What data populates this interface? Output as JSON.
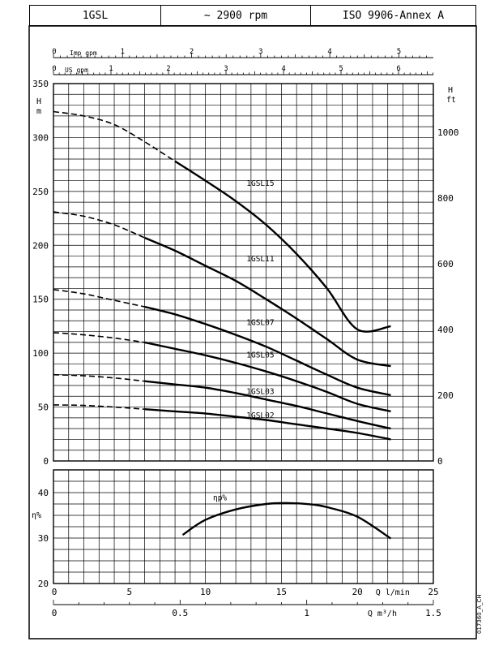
{
  "header": {
    "pump": "1GSL",
    "speed": "~ 2900 rpm",
    "standard": "ISO 9906-Annex A"
  },
  "figure_code": "017360_A_CH",
  "chart_data": [
    {
      "type": "line",
      "title": "",
      "ylabel": "H\nm",
      "ylabel_right": "H\nft",
      "ylim": [
        0,
        350
      ],
      "yticks": [
        0,
        50,
        100,
        150,
        200,
        250,
        300,
        350
      ],
      "yticks_right": [
        0,
        200,
        400,
        600,
        800,
        1000
      ],
      "yticks_right_ft_to_m": 0.3048,
      "top_axes": [
        {
          "label": "Imp gpm",
          "ticks": [
            0,
            1,
            2,
            3,
            4,
            5
          ],
          "lpm_per_unit": 4.546
        },
        {
          "label": "US gpm",
          "ticks": [
            0,
            1,
            2,
            3,
            4,
            5,
            6
          ],
          "lpm_per_unit": 3.785
        }
      ],
      "x_unit": "l/min",
      "xlim": [
        0,
        25
      ],
      "grid": true,
      "series": [
        {
          "name": "1GSL15",
          "label_at": {
            "x": 12.7,
            "y": 258
          },
          "dashed": [
            [
              0,
              324
            ],
            [
              2,
              320
            ],
            [
              4,
              312
            ],
            [
              6,
              296
            ],
            [
              8,
              278
            ]
          ],
          "solid": [
            [
              8,
              278
            ],
            [
              10,
              260
            ],
            [
              12,
              241
            ],
            [
              14,
              219
            ],
            [
              16,
              192
            ],
            [
              18,
              160
            ],
            [
              20,
              122
            ],
            [
              22.2,
              125
            ]
          ]
        },
        {
          "name": "1GSL11",
          "label_at": {
            "x": 12.7,
            "y": 188
          },
          "dashed": [
            [
              0,
              231
            ],
            [
              2,
              227
            ],
            [
              4,
              219
            ],
            [
              6,
              207
            ]
          ],
          "solid": [
            [
              6,
              207
            ],
            [
              8,
              195
            ],
            [
              10,
              181
            ],
            [
              12,
              167
            ],
            [
              14,
              150
            ],
            [
              16,
              132
            ],
            [
              18,
              113
            ],
            [
              20,
              94
            ],
            [
              22.2,
              88
            ]
          ]
        },
        {
          "name": "1GSL07",
          "label_at": {
            "x": 12.7,
            "y": 129
          },
          "dashed": [
            [
              0,
              159
            ],
            [
              2,
              155
            ],
            [
              4,
              149
            ],
            [
              6,
              143
            ]
          ],
          "solid": [
            [
              6,
              143
            ],
            [
              8,
              136
            ],
            [
              10,
              127
            ],
            [
              12,
              117
            ],
            [
              14,
              106
            ],
            [
              16,
              93
            ],
            [
              18,
              80
            ],
            [
              20,
              68
            ],
            [
              22.2,
              61
            ]
          ]
        },
        {
          "name": "1GSL05",
          "label_at": {
            "x": 12.7,
            "y": 99
          },
          "dashed": [
            [
              0,
              119
            ],
            [
              2,
              117
            ],
            [
              4,
              114
            ],
            [
              6,
              110
            ]
          ],
          "solid": [
            [
              6,
              110
            ],
            [
              8,
              104
            ],
            [
              10,
              98
            ],
            [
              12,
              91
            ],
            [
              14,
              83
            ],
            [
              16,
              74
            ],
            [
              18,
              64
            ],
            [
              20,
              53
            ],
            [
              22.2,
              46
            ]
          ]
        },
        {
          "name": "1GSL03",
          "label_at": {
            "x": 12.7,
            "y": 65
          },
          "dashed": [
            [
              0,
              80
            ],
            [
              2,
              79
            ],
            [
              4,
              77
            ],
            [
              6,
              74
            ]
          ],
          "solid": [
            [
              6,
              74
            ],
            [
              8,
              71
            ],
            [
              10,
              68
            ],
            [
              12,
              63
            ],
            [
              14,
              57
            ],
            [
              16,
              51
            ],
            [
              18,
              44
            ],
            [
              20,
              37
            ],
            [
              22.2,
              30
            ]
          ]
        },
        {
          "name": "1GSL02",
          "label_at": {
            "x": 12.7,
            "y": 43
          },
          "dashed": [
            [
              0,
              52
            ],
            [
              2,
              51.5
            ],
            [
              4,
              50
            ],
            [
              6,
              48
            ]
          ],
          "solid": [
            [
              6,
              48
            ],
            [
              8,
              46
            ],
            [
              10,
              44
            ],
            [
              12,
              41
            ],
            [
              14,
              38
            ],
            [
              16,
              34
            ],
            [
              18,
              30
            ],
            [
              20,
              26
            ],
            [
              22.2,
              20
            ]
          ]
        }
      ]
    },
    {
      "type": "line",
      "title": "",
      "ylabel": "η%",
      "ylim": [
        20,
        45
      ],
      "yticks": [
        20,
        30,
        40
      ],
      "xlabel": "Q l/min",
      "xlim": [
        0,
        25
      ],
      "xticks": [
        0,
        5,
        10,
        15,
        20,
        25
      ],
      "x2label": "Q m³/h",
      "x2ticks": [
        "0",
        "0.5",
        "1",
        "1.5"
      ],
      "x2_lpm_per_unit": 16.667,
      "grid": true,
      "series": [
        {
          "name": "ηp%",
          "label_at": {
            "x": 10.5,
            "y": 39
          },
          "points": [
            [
              8.5,
              30.7
            ],
            [
              10,
              34
            ],
            [
              12,
              36.3
            ],
            [
              14,
              37.5
            ],
            [
              15.5,
              37.7
            ],
            [
              17,
              37.4
            ],
            [
              18,
              36.8
            ],
            [
              20,
              34.7
            ],
            [
              22.2,
              29.9
            ]
          ]
        }
      ]
    }
  ]
}
